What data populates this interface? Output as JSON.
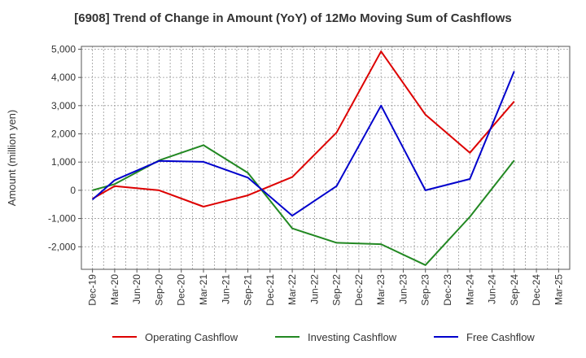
{
  "chart_data": {
    "type": "line",
    "title": "[6908]  Trend of Change in Amount (YoY) of 12Mo Moving Sum of Cashflows",
    "xlabel": "",
    "ylabel": "Amount (million yen)",
    "ylim": [
      -2800,
      5100
    ],
    "yticks": [
      -2000,
      -1000,
      0,
      1000,
      2000,
      3000,
      4000,
      5000
    ],
    "ytick_labels": [
      "-2,000",
      "-1,000",
      "0",
      "1,000",
      "2,000",
      "3,000",
      "4,000",
      "5,000"
    ],
    "categories": [
      "Dec-19",
      "Mar-20",
      "Jun-20",
      "Sep-20",
      "Dec-20",
      "Mar-21",
      "Jun-21",
      "Sep-21",
      "Dec-21",
      "Mar-22",
      "Jun-22",
      "Sep-22",
      "Dec-22",
      "Mar-23",
      "Jun-23",
      "Sep-23",
      "Dec-23",
      "Mar-24",
      "Jun-24",
      "Sep-24",
      "Dec-24",
      "Mar-25"
    ],
    "grid": true,
    "legend_position": "bottom",
    "series": [
      {
        "name": "Operating Cashflow",
        "color": "#dd0000",
        "points": [
          [
            0,
            -300
          ],
          [
            1,
            150
          ],
          [
            3,
            0
          ],
          [
            5,
            -580
          ],
          [
            7,
            -180
          ],
          [
            9,
            470
          ],
          [
            11,
            2050
          ],
          [
            13,
            4920
          ],
          [
            15,
            2680
          ],
          [
            17,
            1330
          ],
          [
            19,
            3150
          ]
        ]
      },
      {
        "name": "Investing Cashflow",
        "color": "#228822",
        "points": [
          [
            0,
            0
          ],
          [
            1,
            220
          ],
          [
            3,
            1060
          ],
          [
            5,
            1600
          ],
          [
            7,
            620
          ],
          [
            9,
            -1350
          ],
          [
            11,
            -1860
          ],
          [
            13,
            -1910
          ],
          [
            15,
            -2650
          ],
          [
            17,
            -940
          ],
          [
            19,
            1060
          ]
        ]
      },
      {
        "name": "Free Cashflow",
        "color": "#0000cc",
        "points": [
          [
            0,
            -330
          ],
          [
            1,
            360
          ],
          [
            3,
            1040
          ],
          [
            5,
            1010
          ],
          [
            7,
            450
          ],
          [
            9,
            -900
          ],
          [
            11,
            150
          ],
          [
            13,
            3000
          ],
          [
            15,
            0
          ],
          [
            17,
            400
          ],
          [
            19,
            4220
          ]
        ]
      }
    ]
  }
}
